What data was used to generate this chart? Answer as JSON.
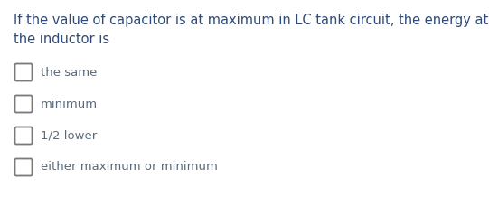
{
  "background_color": "#ffffff",
  "question_text_line1": "If the value of capacitor is at maximum in LC tank circuit, the energy at",
  "question_text_line2": "the inductor is",
  "question_color": "#2E4A7A",
  "options": [
    "the same",
    "minimum",
    "1/2 lower",
    "either maximum or minimum"
  ],
  "option_color": "#5A6A7A",
  "option_text_fontsize": 9.5,
  "question_fontsize": 10.5,
  "checkbox_edge_color": "#7A7A7A",
  "fig_width": 5.41,
  "fig_height": 2.39,
  "dpi": 100
}
